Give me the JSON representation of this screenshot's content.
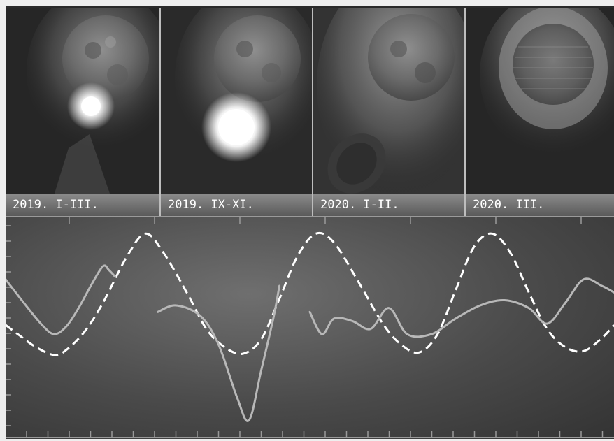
{
  "panels": [
    {
      "label": "2019. I-III."
    },
    {
      "label": "2019. IX-XI."
    },
    {
      "label": "2020. I-II."
    },
    {
      "label": "2020. III."
    }
  ],
  "colors": {
    "background": "#2a2a2a",
    "curve_solid": "#b8b8b8",
    "curve_dashed": "#ffffff",
    "caption_text": "#ffffff"
  },
  "chart_data": {
    "type": "line",
    "title": "",
    "xlabel": "",
    "ylabel": "",
    "grid": false,
    "series": [
      {
        "style": "dashed",
        "points": [
          [
            0,
            25
          ],
          [
            2,
            18
          ],
          [
            5,
            8
          ],
          [
            8,
            2
          ],
          [
            10,
            6
          ],
          [
            13,
            20
          ],
          [
            16,
            42
          ],
          [
            20,
            78
          ],
          [
            23,
            95
          ],
          [
            26,
            80
          ],
          [
            30,
            48
          ],
          [
            33,
            22
          ],
          [
            36,
            8
          ],
          [
            39,
            3
          ],
          [
            42,
            14
          ],
          [
            45,
            45
          ],
          [
            48,
            78
          ],
          [
            51,
            95
          ],
          [
            54,
            88
          ],
          [
            58,
            58
          ],
          [
            62,
            26
          ],
          [
            65,
            10
          ],
          [
            68,
            4
          ],
          [
            71,
            18
          ],
          [
            74,
            52
          ],
          [
            77,
            85
          ],
          [
            80,
            95
          ],
          [
            83,
            80
          ],
          [
            86,
            50
          ],
          [
            89,
            22
          ],
          [
            92,
            8
          ],
          [
            95,
            5
          ],
          [
            98,
            15
          ],
          [
            100,
            25
          ]
        ]
      },
      {
        "style": "solid",
        "segments": [
          [
            [
              0,
              60
            ],
            [
              3,
              42
            ],
            [
              6,
              25
            ],
            [
              8,
              18
            ],
            [
              10,
              24
            ],
            [
              12,
              38
            ],
            [
              14,
              55
            ],
            [
              16,
              70
            ],
            [
              17,
              67
            ],
            [
              18,
              62
            ]
          ],
          [
            [
              25,
              35
            ],
            [
              28,
              40
            ],
            [
              32,
              32
            ],
            [
              35,
              10
            ],
            [
              38,
              -30
            ],
            [
              40,
              -48
            ],
            [
              42,
              -10
            ],
            [
              44,
              30
            ],
            [
              45,
              55
            ]
          ],
          [
            [
              50,
              35
            ],
            [
              52,
              18
            ],
            [
              54,
              30
            ],
            [
              57,
              28
            ],
            [
              60,
              22
            ],
            [
              63,
              38
            ],
            [
              66,
              18
            ],
            [
              70,
              18
            ],
            [
              74,
              30
            ],
            [
              78,
              40
            ],
            [
              82,
              44
            ],
            [
              86,
              38
            ],
            [
              89,
              26
            ],
            [
              92,
              42
            ],
            [
              95,
              60
            ],
            [
              98,
              55
            ],
            [
              100,
              50
            ]
          ]
        ]
      }
    ]
  }
}
